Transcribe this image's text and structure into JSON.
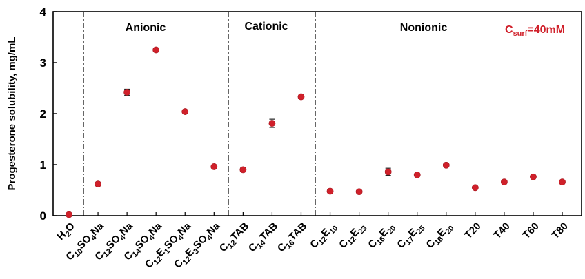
{
  "chart_data": {
    "type": "scatter",
    "ylabel": "Progesterone solubility, mg/mL",
    "ylim": [
      0,
      4
    ],
    "yticks": [
      "0",
      "1",
      "2",
      "3",
      "4"
    ],
    "marker_color": "#d0202a",
    "annotation": {
      "base": "C",
      "sub": "surf",
      "rest": "=40mM",
      "color": "#d0202a"
    },
    "groups": [
      {
        "label": "Anionic"
      },
      {
        "label": "Cationic"
      },
      {
        "label": "Nonionic"
      }
    ],
    "categories": [
      {
        "label": [
          [
            "H",
            ""
          ],
          [
            "2",
            "sub"
          ],
          [
            "O",
            ""
          ]
        ],
        "value": 0.02,
        "err": 0.0
      },
      {
        "label": [
          [
            "C",
            ""
          ],
          [
            "10",
            "sub"
          ],
          [
            "SO",
            ""
          ],
          [
            "4",
            "sub"
          ],
          [
            "Na",
            ""
          ]
        ],
        "value": 0.62,
        "err": 0.02
      },
      {
        "label": [
          [
            "C",
            ""
          ],
          [
            "12",
            "sub"
          ],
          [
            "SO",
            ""
          ],
          [
            "4",
            "sub"
          ],
          [
            "Na",
            ""
          ]
        ],
        "value": 2.42,
        "err": 0.06
      },
      {
        "label": [
          [
            "C",
            ""
          ],
          [
            "14",
            "sub"
          ],
          [
            "SO",
            ""
          ],
          [
            "4",
            "sub"
          ],
          [
            "Na",
            ""
          ]
        ],
        "value": 3.25,
        "err": 0.03
      },
      {
        "label": [
          [
            "C",
            ""
          ],
          [
            "12",
            "sub"
          ],
          [
            "E",
            ""
          ],
          [
            "1",
            "sub"
          ],
          [
            "SO",
            ""
          ],
          [
            "4",
            "sub"
          ],
          [
            "Na",
            ""
          ]
        ],
        "value": 2.04,
        "err": 0.02
      },
      {
        "label": [
          [
            "C",
            ""
          ],
          [
            "12",
            "sub"
          ],
          [
            "E",
            ""
          ],
          [
            "3",
            "sub"
          ],
          [
            "SO",
            ""
          ],
          [
            "4",
            "sub"
          ],
          [
            "Na",
            ""
          ]
        ],
        "value": 0.96,
        "err": 0.02
      },
      {
        "label": [
          [
            "C",
            ""
          ],
          [
            "12",
            "sub"
          ],
          [
            "TAB",
            ""
          ]
        ],
        "value": 0.9,
        "err": 0.04
      },
      {
        "label": [
          [
            "C",
            ""
          ],
          [
            "14",
            "sub"
          ],
          [
            "TAB",
            ""
          ]
        ],
        "value": 1.81,
        "err": 0.08
      },
      {
        "label": [
          [
            "C",
            ""
          ],
          [
            "16",
            "sub"
          ],
          [
            "TAB",
            ""
          ]
        ],
        "value": 2.33,
        "err": 0.03
      },
      {
        "label": [
          [
            "C",
            ""
          ],
          [
            "12",
            "sub"
          ],
          [
            "E",
            ""
          ],
          [
            "10",
            "sub"
          ]
        ],
        "value": 0.48,
        "err": 0.02
      },
      {
        "label": [
          [
            "C",
            ""
          ],
          [
            "12",
            "sub"
          ],
          [
            "E",
            ""
          ],
          [
            "23",
            "sub"
          ]
        ],
        "value": 0.47,
        "err": 0.02
      },
      {
        "label": [
          [
            "C",
            ""
          ],
          [
            "16",
            "sub"
          ],
          [
            "E",
            ""
          ],
          [
            "20",
            "sub"
          ]
        ],
        "value": 0.86,
        "err": 0.07
      },
      {
        "label": [
          [
            "C",
            ""
          ],
          [
            "17",
            "sub"
          ],
          [
            "E",
            ""
          ],
          [
            "25",
            "sub"
          ]
        ],
        "value": 0.8,
        "err": 0.02
      },
      {
        "label": [
          [
            "C",
            ""
          ],
          [
            "18",
            "sub"
          ],
          [
            "E",
            ""
          ],
          [
            "20",
            "sub"
          ]
        ],
        "value": 0.99,
        "err": 0.02
      },
      {
        "label": [
          [
            "T20",
            ""
          ]
        ],
        "value": 0.55,
        "err": 0.02
      },
      {
        "label": [
          [
            "T40",
            ""
          ]
        ],
        "value": 0.66,
        "err": 0.02
      },
      {
        "label": [
          [
            "T60",
            ""
          ]
        ],
        "value": 0.76,
        "err": 0.02
      },
      {
        "label": [
          [
            "T80",
            ""
          ]
        ],
        "value": 0.66,
        "err": 0.02
      }
    ]
  }
}
